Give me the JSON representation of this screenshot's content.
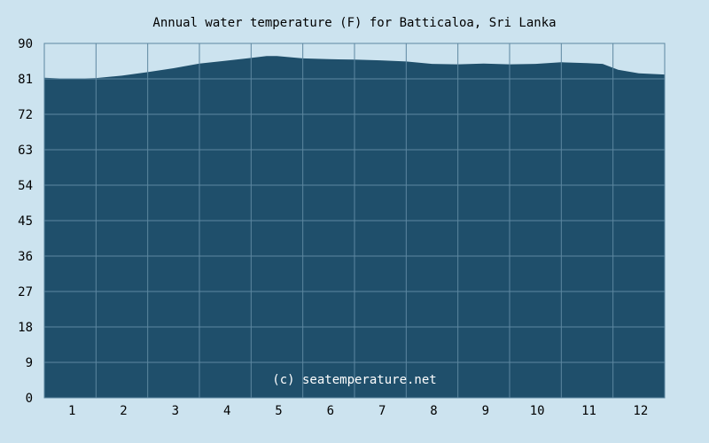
{
  "chart_data": {
    "type": "area",
    "title": "Annual water temperature (F) for Batticaloa, Sri Lanka",
    "xlabel": "",
    "ylabel": "",
    "ylim": [
      0,
      90
    ],
    "y_ticks": [
      0,
      9,
      18,
      27,
      36,
      45,
      54,
      63,
      72,
      81,
      90
    ],
    "x_ticks": [
      "1",
      "2",
      "3",
      "4",
      "5",
      "6",
      "7",
      "8",
      "9",
      "10",
      "11",
      "12"
    ],
    "xlim": [
      0.5,
      12.5
    ],
    "grid": true,
    "series": [
      {
        "x": [
          0.5,
          1.0,
          1.5,
          2.0,
          2.5,
          3.0,
          3.5,
          4.0,
          4.5,
          4.8,
          5.0,
          5.5,
          6.0,
          6.5,
          7.0,
          7.5,
          8.0,
          8.5,
          9.0,
          9.5,
          10.0,
          10.5,
          11.0,
          11.3,
          11.6,
          12.0,
          12.5
        ],
        "y": [
          81.3,
          81.0,
          81.2,
          81.8,
          82.7,
          83.7,
          84.9,
          85.6,
          86.3,
          86.8,
          86.8,
          86.2,
          86.0,
          85.9,
          85.7,
          85.4,
          84.8,
          84.7,
          84.9,
          84.7,
          84.8,
          85.2,
          85.0,
          84.8,
          83.3,
          82.4,
          82.1
        ]
      }
    ],
    "annotation": "(c) seatemperature.net",
    "colors": {
      "background": "#cce3ef",
      "area": "#1f4f6b",
      "grid": "#5d87a0",
      "annotation": "#ffffff"
    }
  }
}
